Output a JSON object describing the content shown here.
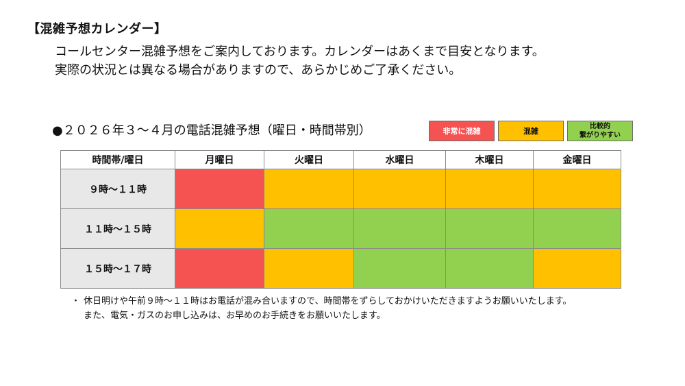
{
  "header": {
    "title": "【混雑予想カレンダー】",
    "intro_line1": "コールセンター混雑予想をご案内しております。カレンダーはあくまで目安となります。",
    "intro_line2": "実際の状況とは異なる場合がありますので、あらかじめご了承ください。"
  },
  "section": {
    "title": "●２０２６年３～４月の電話混雑予想（曜日・時間帯別）"
  },
  "legend": {
    "very_busy": "非常に混雑",
    "busy": "混雑",
    "available": "比較的\n繋がりやすい"
  },
  "colors": {
    "very_busy": "#f55252",
    "busy": "#ffc000",
    "available": "#92d050",
    "row_header_bg": "#e8e8e8"
  },
  "table": {
    "corner_header": "時間帯/曜日",
    "days": [
      "月曜日",
      "火曜日",
      "水曜日",
      "木曜日",
      "金曜日"
    ],
    "rows": [
      {
        "time": "９時～１１時",
        "levels": [
          "very_busy",
          "busy",
          "busy",
          "busy",
          "busy"
        ]
      },
      {
        "time": "１１時～１５時",
        "levels": [
          "busy",
          "available",
          "available",
          "available",
          "available"
        ]
      },
      {
        "time": "１５時～１７時",
        "levels": [
          "very_busy",
          "busy",
          "available",
          "available",
          "busy"
        ]
      }
    ]
  },
  "notes": {
    "bullet": "・",
    "line1": "休日明けや午前９時～１１時はお電話が混み合いますので、時間帯をずらしておかけいただきますようお願いいたします。",
    "line2": "また、電気・ガスのお申し込みは、お早めのお手続きをお願いいたします。"
  }
}
